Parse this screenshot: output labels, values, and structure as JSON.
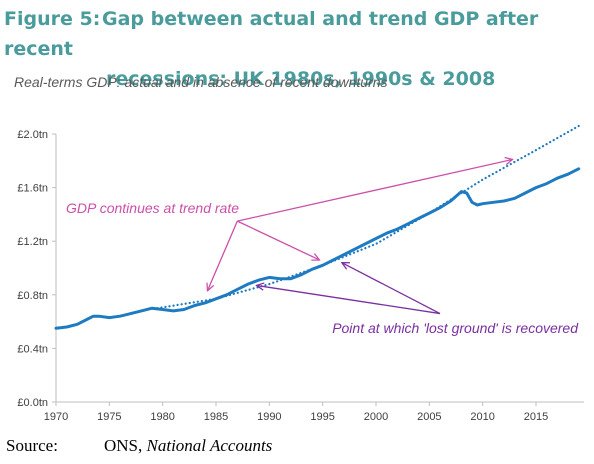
{
  "title": {
    "label": "Figure 5:",
    "line1": "Gap between actual and trend GDP after recent",
    "line2": "recessions: UK 1980s, 1990s & 2008"
  },
  "subtitle": "Real-terms GDP: actual and in absence of recent downturns",
  "source": {
    "label": "Source:",
    "publisher": "ONS,",
    "publication": "National Accounts"
  },
  "colors": {
    "actual": "#1f7bc1",
    "trend": "#1f7bc1",
    "annotation_trend": "#cc4fa8",
    "annotation_recovered": "#7a2fa0",
    "axis": "#bfbfbf"
  },
  "chart_data": {
    "type": "line",
    "title": "Gap between actual and trend GDP after recent recessions: UK 1980s, 1990s & 2008",
    "subtitle": "Real-terms GDP: actual and in absence of recent downturns",
    "xlabel": "",
    "ylabel": "",
    "xlim": [
      1970,
      2019.5
    ],
    "ylim": [
      0,
      2.0
    ],
    "xticks": [
      1970,
      1975,
      1980,
      1985,
      1990,
      1995,
      2000,
      2005,
      2010,
      2015
    ],
    "xtick_labels": [
      "1970",
      "1975",
      "1980",
      "1985",
      "1990",
      "1995",
      "2000",
      "2005",
      "2010",
      "2015"
    ],
    "yticks": [
      0,
      0.4,
      0.8,
      1.2,
      1.6,
      2.0
    ],
    "ytick_labels": [
      "£0.0tn",
      "£0.4tn",
      "£0.8tn",
      "£1.2tn",
      "£1.6tn",
      "£2.0tn"
    ],
    "grid": false,
    "series": [
      {
        "key": "actual",
        "style": "solid",
        "x": [
          1970,
          1971,
          1972,
          1973,
          1973.5,
          1974,
          1975,
          1976,
          1977,
          1978,
          1979,
          1980,
          1981,
          1982,
          1983,
          1984,
          1985,
          1986,
          1987,
          1988,
          1989,
          1990,
          1991,
          1992,
          1993,
          1994,
          1995,
          1996,
          1997,
          1998,
          1999,
          2000,
          2001,
          2002,
          2003,
          2004,
          2005,
          2006,
          2007,
          2008,
          2008.5,
          2009,
          2009.5,
          2010,
          2011,
          2012,
          2013,
          2014,
          2015,
          2016,
          2017,
          2018,
          2019
        ],
        "y": [
          0.55,
          0.56,
          0.58,
          0.62,
          0.64,
          0.64,
          0.63,
          0.64,
          0.66,
          0.68,
          0.7,
          0.69,
          0.68,
          0.69,
          0.72,
          0.74,
          0.77,
          0.8,
          0.84,
          0.88,
          0.91,
          0.93,
          0.92,
          0.92,
          0.95,
          0.99,
          1.02,
          1.06,
          1.1,
          1.14,
          1.18,
          1.22,
          1.26,
          1.29,
          1.33,
          1.37,
          1.41,
          1.45,
          1.5,
          1.57,
          1.56,
          1.49,
          1.47,
          1.48,
          1.49,
          1.5,
          1.52,
          1.56,
          1.6,
          1.63,
          1.67,
          1.7,
          1.74
        ]
      },
      {
        "key": "trend",
        "style": "dotted",
        "x": [
          1979.5,
          1985,
          1990,
          1995,
          2000,
          2005,
          2008,
          2010,
          2015,
          2019
        ],
        "y": [
          0.7,
          0.77,
          0.88,
          1.02,
          1.18,
          1.41,
          1.56,
          1.66,
          1.88,
          2.06
        ]
      }
    ],
    "annotations": [
      {
        "text": "GDP continues at trend rate",
        "color_key": "annotation_trend",
        "origin": [
          1987,
          1.35
        ],
        "arrow_targets": [
          [
            1984.2,
            0.83
          ],
          [
            1994.7,
            1.06
          ],
          [
            2012.8,
            1.81
          ]
        ]
      },
      {
        "text": "Point at which 'lost ground' is recovered",
        "color_key": "annotation_recovered",
        "origin": [
          2006,
          0.66
        ],
        "arrow_targets": [
          [
            1988.8,
            0.87
          ],
          [
            1996.8,
            1.04
          ]
        ]
      }
    ]
  }
}
